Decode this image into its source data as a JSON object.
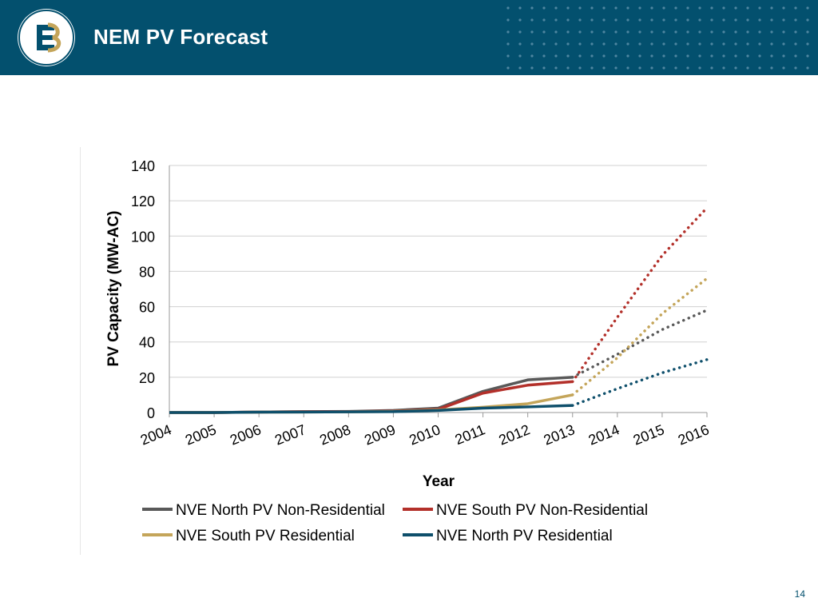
{
  "header": {
    "title": "NEM PV Forecast",
    "logo_label": "E3"
  },
  "slide_number": "14",
  "colors": {
    "header_bg": "#03506e",
    "nve_north_non_res": "#595959",
    "nve_south_non_res": "#b3302a",
    "nve_south_res": "#c4a55a",
    "nve_north_res": "#0e4f6b"
  },
  "chart_data": {
    "type": "line",
    "title": "",
    "xlabel": "Year",
    "ylabel": "PV Capacity (MW-AC)",
    "categories": [
      "2004",
      "2005",
      "2006",
      "2007",
      "2008",
      "2009",
      "2010",
      "2011",
      "2012",
      "2013",
      "2014",
      "2015",
      "2016"
    ],
    "ylim": [
      0,
      140
    ],
    "yticks": [
      0,
      20,
      40,
      60,
      80,
      100,
      120,
      140
    ],
    "grid": true,
    "legend_position": "bottom",
    "historical_through": "2013",
    "forecast_style": "dotted",
    "series": [
      {
        "key": "nve_north_non_res",
        "name": "NVE North PV Non-Residential",
        "values": [
          0,
          0,
          0.3,
          0.5,
          0.6,
          1.2,
          2.5,
          12,
          18.5,
          20,
          33,
          47,
          58
        ]
      },
      {
        "key": "nve_south_non_res",
        "name": "NVE South PV Non-Residential",
        "values": [
          0,
          0,
          0.3,
          0.5,
          0.5,
          0.8,
          1.8,
          11,
          15.5,
          17.5,
          54,
          89,
          116
        ]
      },
      {
        "key": "nve_south_res",
        "name": "NVE South PV Residential",
        "values": [
          0,
          0,
          0.2,
          0.3,
          0.4,
          0.6,
          1.5,
          3,
          5,
          10,
          31,
          56,
          76
        ]
      },
      {
        "key": "nve_north_res",
        "name": "NVE North PV Residential",
        "values": [
          0,
          0,
          0.2,
          0.3,
          0.4,
          0.5,
          1.2,
          2.5,
          3.2,
          4,
          13.5,
          22.5,
          30
        ]
      }
    ]
  }
}
